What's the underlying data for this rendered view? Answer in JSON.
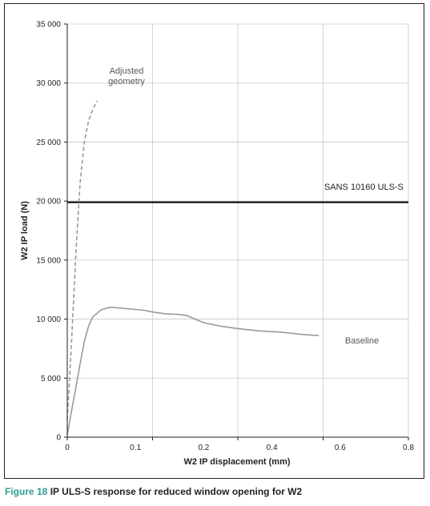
{
  "chart_data": {
    "type": "line",
    "xlabel": "W2 IP displacement (mm)",
    "ylabel": "W2 IP load (N)",
    "xlim": [
      0,
      0.8
    ],
    "ylim": [
      0,
      35000
    ],
    "x_ticks": [
      0,
      0.2,
      0.4,
      0.6,
      0.8
    ],
    "x_tick_labels": [
      "0",
      "0.1",
      "0.2",
      "0.4",
      "0.6",
      "0.8"
    ],
    "x_tick_label_values": [
      0,
      0.1,
      0.2,
      0.4,
      0.6,
      0.8
    ],
    "y_ticks": [
      0,
      5000,
      10000,
      15000,
      20000,
      25000,
      30000,
      35000
    ],
    "y_tick_labels": [
      "0",
      "5 000",
      "10 000",
      "15 000",
      "20 000",
      "25 000",
      "30 000",
      "35 000"
    ],
    "grid": true,
    "series": [
      {
        "name": "Baseline",
        "style": "solid",
        "color": "#9a9a9a",
        "x": [
          0,
          0.01,
          0.02,
          0.03,
          0.04,
          0.05,
          0.06,
          0.08,
          0.1,
          0.12,
          0.15,
          0.18,
          0.2,
          0.23,
          0.26,
          0.28,
          0.3,
          0.32,
          0.36,
          0.4,
          0.45,
          0.5,
          0.55,
          0.59
        ],
        "y": [
          200,
          2200,
          4200,
          6200,
          8100,
          9400,
          10200,
          10800,
          11000,
          10950,
          10850,
          10750,
          10600,
          10450,
          10400,
          10300,
          10000,
          9700,
          9400,
          9200,
          9000,
          8900,
          8700,
          8600
        ]
      },
      {
        "name": "Adjusted geometry",
        "style": "dashed",
        "color": "#9a9a9a",
        "x": [
          0,
          0.01,
          0.02,
          0.03,
          0.04,
          0.05,
          0.06,
          0.07
        ],
        "y": [
          1500,
          8000,
          15500,
          21500,
          25000,
          26800,
          27800,
          28500
        ]
      }
    ],
    "reference_lines": [
      {
        "label": "SANS 10160 ULS-S",
        "y": 19900,
        "color": "#000000"
      }
    ],
    "annotations": {
      "adjusted_line1": "Adjusted",
      "adjusted_line2": "geometry",
      "baseline": "Baseline",
      "sans": "SANS 10160 ULS-S"
    }
  },
  "caption": {
    "label": "Figure 18",
    "text": "IP ULS-S response for reduced window opening for W2"
  }
}
